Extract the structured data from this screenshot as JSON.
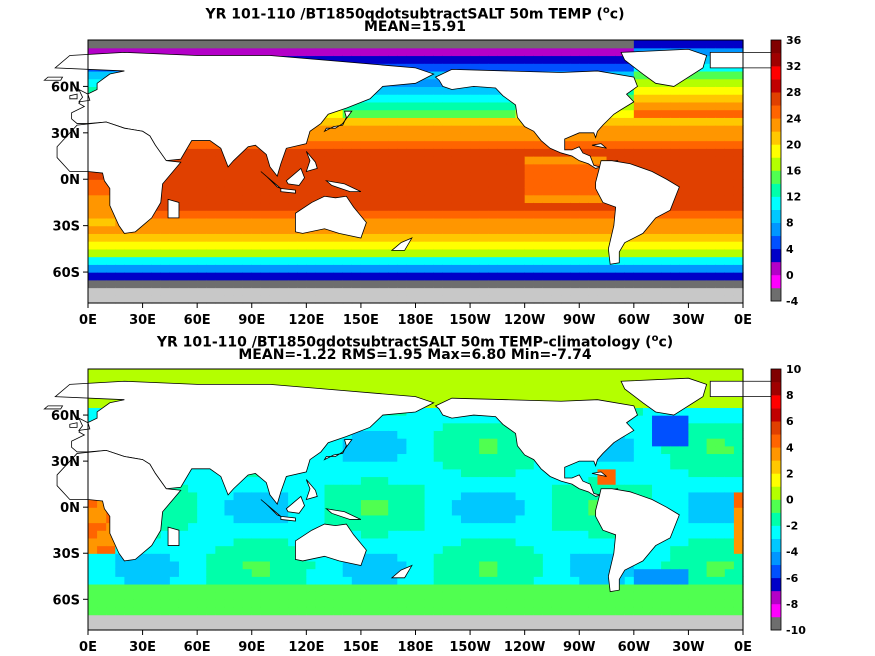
{
  "chart_data": [
    {
      "type": "heatmap",
      "title": "YR 101-110 /BT1850qdotsubtractSALT 50m TEMP (",
      "title_unit_sup": "o",
      "title_unit_tail": "c)",
      "subtitle": "MEAN=15.91",
      "x_ticks": [
        "0E",
        "30E",
        "60E",
        "90E",
        "120E",
        "150E",
        "180E",
        "150W",
        "120W",
        "90W",
        "60W",
        "30W",
        "0E"
      ],
      "y_ticks": [
        "60N",
        "30N",
        "0N",
        "30S",
        "60S"
      ],
      "colorbar_ticks": [
        "36",
        "32",
        "28",
        "24",
        "20",
        "16",
        "12",
        "8",
        "4",
        "0",
        "-4"
      ],
      "colorbar_range": [
        -4,
        36
      ],
      "colors": [
        "#6e6e6e",
        "#ff00ff",
        "#b400c8",
        "#0000c8",
        "#0050ff",
        "#0096ff",
        "#00c8ff",
        "#00ffff",
        "#00ffaa",
        "#50ff50",
        "#b4ff00",
        "#ffff00",
        "#ffc800",
        "#ff9600",
        "#ff6400",
        "#e04000",
        "#c00000",
        "#ff0000",
        "#a00000",
        "#800000"
      ]
    },
    {
      "type": "heatmap",
      "title": "YR 101-110 /BT1850qdotsubtractSALT 50m TEMP-climatology (",
      "title_unit_sup": "o",
      "title_unit_tail": "c)",
      "subtitle": "MEAN=-1.22   RMS=1.95   Max=6.80   Min=-7.74",
      "x_ticks": [
        "0E",
        "30E",
        "60E",
        "90E",
        "120E",
        "150E",
        "180E",
        "150W",
        "120W",
        "90W",
        "60W",
        "30W",
        "0E"
      ],
      "y_ticks": [
        "60N",
        "30N",
        "0N",
        "30S",
        "60S"
      ],
      "colorbar_ticks": [
        "10",
        "8",
        "6",
        "4",
        "2",
        "0",
        "-2",
        "-4",
        "-6",
        "-8",
        "-10"
      ],
      "colorbar_range": [
        -10,
        10
      ],
      "colors": [
        "#6e6e6e",
        "#ff00ff",
        "#b400c8",
        "#0000c8",
        "#0050ff",
        "#0096ff",
        "#00c8ff",
        "#00ffff",
        "#00ffaa",
        "#50ff50",
        "#b4ff00",
        "#ffff00",
        "#ffc800",
        "#ff9600",
        "#ff6400",
        "#e04000",
        "#c00000",
        "#ff0000",
        "#a00000",
        "#800000"
      ]
    }
  ]
}
